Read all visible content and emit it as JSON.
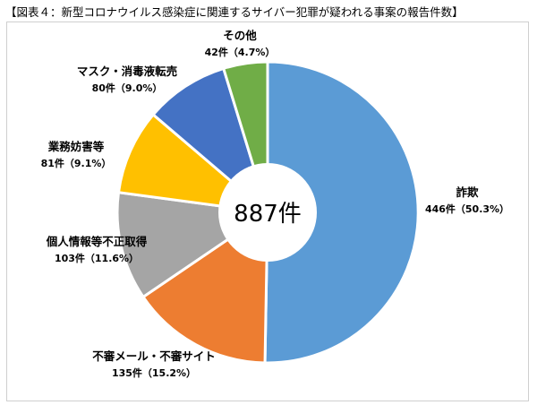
{
  "title": "【図表４：新型コロナウイルス感染症に関連するサイバー犯罪が疑われる事案の報告件数】",
  "chart_data": {
    "type": "pie",
    "variant": "donut",
    "center_label": "887件",
    "slices": [
      {
        "label": "詐欺",
        "value_text": "446件（50.3%）",
        "value": 446,
        "percent": 50.3,
        "color": "#5b9bd5"
      },
      {
        "label": "不審メール・不審サイト",
        "value_text": "135件（15.2%）",
        "value": 135,
        "percent": 15.2,
        "color": "#ed7d31"
      },
      {
        "label": "個人情報等不正取得",
        "value_text": "103件（11.6%）",
        "value": 103,
        "percent": 11.6,
        "color": "#a5a5a5"
      },
      {
        "label": "業務妨害等",
        "value_text": "81件（9.1%）",
        "value": 81,
        "percent": 9.1,
        "color": "#ffc000"
      },
      {
        "label": "マスク・消毒液転売",
        "value_text": "80件（9.0%）",
        "value": 80,
        "percent": 9.0,
        "color": "#4472c4"
      },
      {
        "label": "その他",
        "value_text": "42件（4.7%）",
        "value": 42,
        "percent": 4.7,
        "color": "#70ad47"
      }
    ]
  }
}
